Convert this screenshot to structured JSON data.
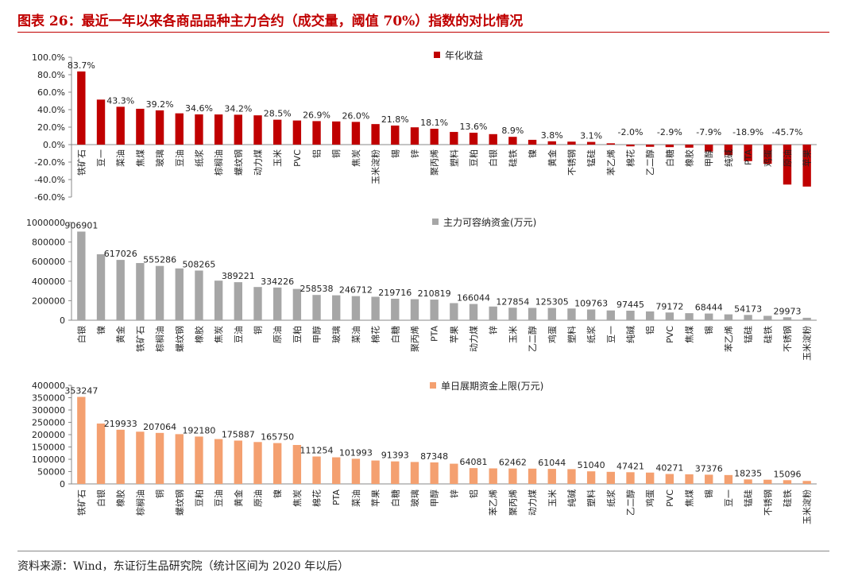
{
  "header": {
    "title": "图表 26：最近一年以来各商品品种主力合约（成交量，阈值 70%）指数的对比情况"
  },
  "footer": {
    "source": "资料来源：Wind，东证衍生品研究院（统计区间为 2020 年以后）"
  },
  "colors": {
    "returns": "#c00000",
    "capacity": "#a6a6a6",
    "limit": "#f4a070",
    "title": "#c00000"
  },
  "chart_data": [
    {
      "type": "bar",
      "legend": "年化收益",
      "legend_position": "top-center",
      "ylim": [
        -0.6,
        1.0
      ],
      "yticks": [
        "-60.0%",
        "-40.0%",
        "-20.0%",
        "0.0%",
        "20.0%",
        "40.0%",
        "60.0%",
        "80.0%",
        "100.0%"
      ],
      "ytick_values": [
        -0.6,
        -0.4,
        -0.2,
        0,
        0.2,
        0.4,
        0.6,
        0.8,
        1.0
      ],
      "categories": [
        "铁矿石",
        "豆一",
        "菜油",
        "焦煤",
        "玻璃",
        "豆油",
        "纸浆",
        "棕榈油",
        "螺纹钢",
        "动力煤",
        "玉米",
        "PVC",
        "铝",
        "铜",
        "焦炭",
        "玉米淀粉",
        "锡",
        "锌",
        "聚丙烯",
        "塑料",
        "豆粕",
        "白银",
        "硅铁",
        "镍",
        "黄金",
        "不锈钢",
        "锰硅",
        "苯乙烯",
        "棉花",
        "乙二醇",
        "白糖",
        "橡胶",
        "甲醇",
        "纯碱",
        "PTA",
        "鸡蛋",
        "原油",
        "苹果"
      ],
      "values": [
        0.837,
        0.515,
        0.433,
        0.41,
        0.392,
        0.358,
        0.346,
        0.345,
        0.342,
        0.335,
        0.285,
        0.276,
        0.269,
        0.265,
        0.26,
        0.235,
        0.218,
        0.198,
        0.181,
        0.145,
        0.136,
        0.12,
        0.089,
        0.055,
        0.038,
        0.034,
        0.031,
        0.015,
        -0.02,
        -0.025,
        -0.029,
        -0.035,
        -0.079,
        -0.12,
        -0.189,
        -0.22,
        -0.457,
        -0.48
      ],
      "data_labels": [
        {
          "index": 0,
          "text": "83.7%"
        },
        {
          "index": 2,
          "text": "43.3%"
        },
        {
          "index": 4,
          "text": "39.2%"
        },
        {
          "index": 6,
          "text": "34.6%"
        },
        {
          "index": 8,
          "text": "34.2%"
        },
        {
          "index": 10,
          "text": "28.5%"
        },
        {
          "index": 12,
          "text": "26.9%"
        },
        {
          "index": 14,
          "text": "26.0%"
        },
        {
          "index": 16,
          "text": "21.8%"
        },
        {
          "index": 18,
          "text": "18.1%"
        },
        {
          "index": 20,
          "text": "13.6%"
        },
        {
          "index": 22,
          "text": "8.9%"
        },
        {
          "index": 24,
          "text": "3.8%"
        },
        {
          "index": 26,
          "text": "3.1%"
        },
        {
          "index": 28,
          "text": "-2.0%"
        },
        {
          "index": 30,
          "text": "-2.9%"
        },
        {
          "index": 32,
          "text": "-7.9%"
        },
        {
          "index": 34,
          "text": "-18.9%"
        },
        {
          "index": 36,
          "text": "-45.7%"
        }
      ]
    },
    {
      "type": "bar",
      "legend": "主力可容纳资金(万元)",
      "legend_position": "top-center",
      "ylim": [
        0,
        1000000
      ],
      "yticks": [
        "0",
        "200000",
        "400000",
        "600000",
        "800000",
        "1000000"
      ],
      "ytick_values": [
        0,
        200000,
        400000,
        600000,
        800000,
        1000000
      ],
      "categories": [
        "白银",
        "镍",
        "黄金",
        "铁矿石",
        "棕榈油",
        "螺纹钢",
        "橡胶",
        "焦炭",
        "豆油",
        "铜",
        "原油",
        "豆粕",
        "甲醇",
        "玻璃",
        "菜油",
        "棉花",
        "白糖",
        "聚丙烯",
        "PTA",
        "苹果",
        "动力煤",
        "锌",
        "玉米",
        "乙二醇",
        "鸡蛋",
        "塑料",
        "纸浆",
        "豆一",
        "纯碱",
        "铝",
        "PVC",
        "焦煤",
        "锡",
        "苯乙烯",
        "锰硅",
        "硅铁",
        "不锈钢",
        "玉米淀粉"
      ],
      "values": [
        906901,
        675000,
        617026,
        585000,
        555286,
        530000,
        508265,
        405000,
        389221,
        340000,
        334226,
        320000,
        258538,
        255000,
        246712,
        240000,
        219716,
        215000,
        210819,
        175000,
        166044,
        140000,
        127854,
        126000,
        125305,
        120000,
        109763,
        100000,
        97445,
        90000,
        79172,
        72000,
        68444,
        60000,
        54173,
        45000,
        29973,
        25000
      ],
      "data_labels": [
        {
          "index": 0,
          "text": "906901"
        },
        {
          "index": 2,
          "text": "617026"
        },
        {
          "index": 4,
          "text": "555286"
        },
        {
          "index": 6,
          "text": "508265"
        },
        {
          "index": 8,
          "text": "389221"
        },
        {
          "index": 10,
          "text": "334226"
        },
        {
          "index": 12,
          "text": "258538"
        },
        {
          "index": 14,
          "text": "246712"
        },
        {
          "index": 16,
          "text": "219716"
        },
        {
          "index": 18,
          "text": "210819"
        },
        {
          "index": 20,
          "text": "166044"
        },
        {
          "index": 22,
          "text": "127854"
        },
        {
          "index": 24,
          "text": "125305"
        },
        {
          "index": 26,
          "text": "109763"
        },
        {
          "index": 28,
          "text": "97445"
        },
        {
          "index": 30,
          "text": "79172"
        },
        {
          "index": 32,
          "text": "68444"
        },
        {
          "index": 34,
          "text": "54173"
        },
        {
          "index": 36,
          "text": "29973"
        }
      ]
    },
    {
      "type": "bar",
      "legend": "单日展期资金上限(万元)",
      "legend_position": "top-center",
      "ylim": [
        0,
        400000
      ],
      "yticks": [
        "0",
        "50000",
        "100000",
        "150000",
        "200000",
        "250000",
        "300000",
        "350000",
        "400000"
      ],
      "ytick_values": [
        0,
        50000,
        100000,
        150000,
        200000,
        250000,
        300000,
        350000,
        400000
      ],
      "categories": [
        "铁矿石",
        "白银",
        "橡胶",
        "棕榈油",
        "铜",
        "螺纹钢",
        "豆粕",
        "豆油",
        "黄金",
        "原油",
        "镍",
        "焦炭",
        "棉花",
        "PTA",
        "菜油",
        "苹果",
        "白糖",
        "玻璃",
        "甲醇",
        "锌",
        "铝",
        "苯乙烯",
        "聚丙烯",
        "动力煤",
        "玉米",
        "纯碱",
        "塑料",
        "纸浆",
        "乙二醇",
        "鸡蛋",
        "PVC",
        "焦煤",
        "锡",
        "豆一",
        "锰硅",
        "不锈钢",
        "硅铁",
        "玉米淀粉"
      ],
      "values": [
        353247,
        245000,
        219933,
        212000,
        207064,
        202000,
        192180,
        182000,
        175887,
        170000,
        165750,
        158000,
        111254,
        108000,
        101993,
        95000,
        91393,
        89000,
        87348,
        82000,
        64081,
        63000,
        62462,
        62000,
        61044,
        60000,
        51040,
        49000,
        47421,
        46000,
        40271,
        39000,
        37376,
        36000,
        18235,
        17000,
        15096,
        12000
      ],
      "data_labels": [
        {
          "index": 0,
          "text": "353247"
        },
        {
          "index": 2,
          "text": "219933"
        },
        {
          "index": 4,
          "text": "207064"
        },
        {
          "index": 6,
          "text": "192180"
        },
        {
          "index": 8,
          "text": "175887"
        },
        {
          "index": 10,
          "text": "165750"
        },
        {
          "index": 12,
          "text": "111254"
        },
        {
          "index": 14,
          "text": "101993"
        },
        {
          "index": 16,
          "text": "91393"
        },
        {
          "index": 18,
          "text": "87348"
        },
        {
          "index": 20,
          "text": "64081"
        },
        {
          "index": 22,
          "text": "62462"
        },
        {
          "index": 24,
          "text": "61044"
        },
        {
          "index": 26,
          "text": "51040"
        },
        {
          "index": 28,
          "text": "47421"
        },
        {
          "index": 30,
          "text": "40271"
        },
        {
          "index": 32,
          "text": "37376"
        },
        {
          "index": 34,
          "text": "18235"
        },
        {
          "index": 36,
          "text": "15096"
        }
      ]
    }
  ]
}
